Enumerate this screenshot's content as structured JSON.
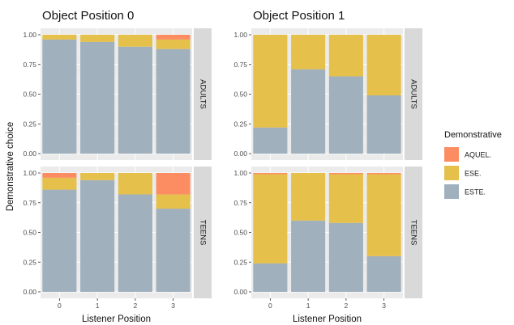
{
  "chart_data": {
    "type": "bar",
    "stacked": true,
    "ylabel": "Demonstrative choice",
    "xlabel": "Listener Position",
    "categories": [
      "0",
      "1",
      "2",
      "3"
    ],
    "yticks": [
      "0.00",
      "0.25",
      "0.50",
      "0.75",
      "1.00"
    ],
    "ylim": [
      0,
      1
    ],
    "grid": true,
    "legend": {
      "title": "Demonstrative",
      "placement": "right",
      "entries": [
        {
          "key": "AQUEL",
          "label": "AQUEL.",
          "color": "#FC8D62"
        },
        {
          "key": "ESE",
          "label": "ESE.",
          "color": "#E5C04B"
        },
        {
          "key": "ESTE",
          "label": "ESTE.",
          "color": "#A0B0BC"
        }
      ]
    },
    "columns": [
      {
        "title": "Object Position 0",
        "xlabel": "Listener Position"
      },
      {
        "title": "Object Position 1",
        "xlabel": "Listener Position"
      }
    ],
    "rows": [
      {
        "strip": "ADULTS"
      },
      {
        "strip": "TEENS"
      }
    ],
    "panels": [
      {
        "column": 0,
        "row": 0,
        "series": [
          {
            "key": "ESTE",
            "values": [
              0.96,
              0.94,
              0.9,
              0.88
            ]
          },
          {
            "key": "ESE",
            "values": [
              0.04,
              0.06,
              0.1,
              0.08
            ]
          },
          {
            "key": "AQUEL",
            "values": [
              0.0,
              0.0,
              0.0,
              0.04
            ]
          }
        ]
      },
      {
        "column": 1,
        "row": 0,
        "series": [
          {
            "key": "ESTE",
            "values": [
              0.22,
              0.71,
              0.65,
              0.49
            ]
          },
          {
            "key": "ESE",
            "values": [
              0.78,
              0.29,
              0.35,
              0.51
            ]
          },
          {
            "key": "AQUEL",
            "values": [
              0.0,
              0.0,
              0.0,
              0.0
            ]
          }
        ]
      },
      {
        "column": 0,
        "row": 1,
        "series": [
          {
            "key": "ESTE",
            "values": [
              0.86,
              0.94,
              0.82,
              0.7
            ]
          },
          {
            "key": "ESE",
            "values": [
              0.1,
              0.06,
              0.18,
              0.12
            ]
          },
          {
            "key": "AQUEL",
            "values": [
              0.04,
              0.0,
              0.0,
              0.18
            ]
          }
        ]
      },
      {
        "column": 1,
        "row": 1,
        "series": [
          {
            "key": "ESTE",
            "values": [
              0.24,
              0.6,
              0.58,
              0.3
            ]
          },
          {
            "key": "ESE",
            "values": [
              0.75,
              0.4,
              0.41,
              0.69
            ]
          },
          {
            "key": "AQUEL",
            "values": [
              0.01,
              0.0,
              0.01,
              0.01
            ]
          }
        ]
      }
    ]
  }
}
